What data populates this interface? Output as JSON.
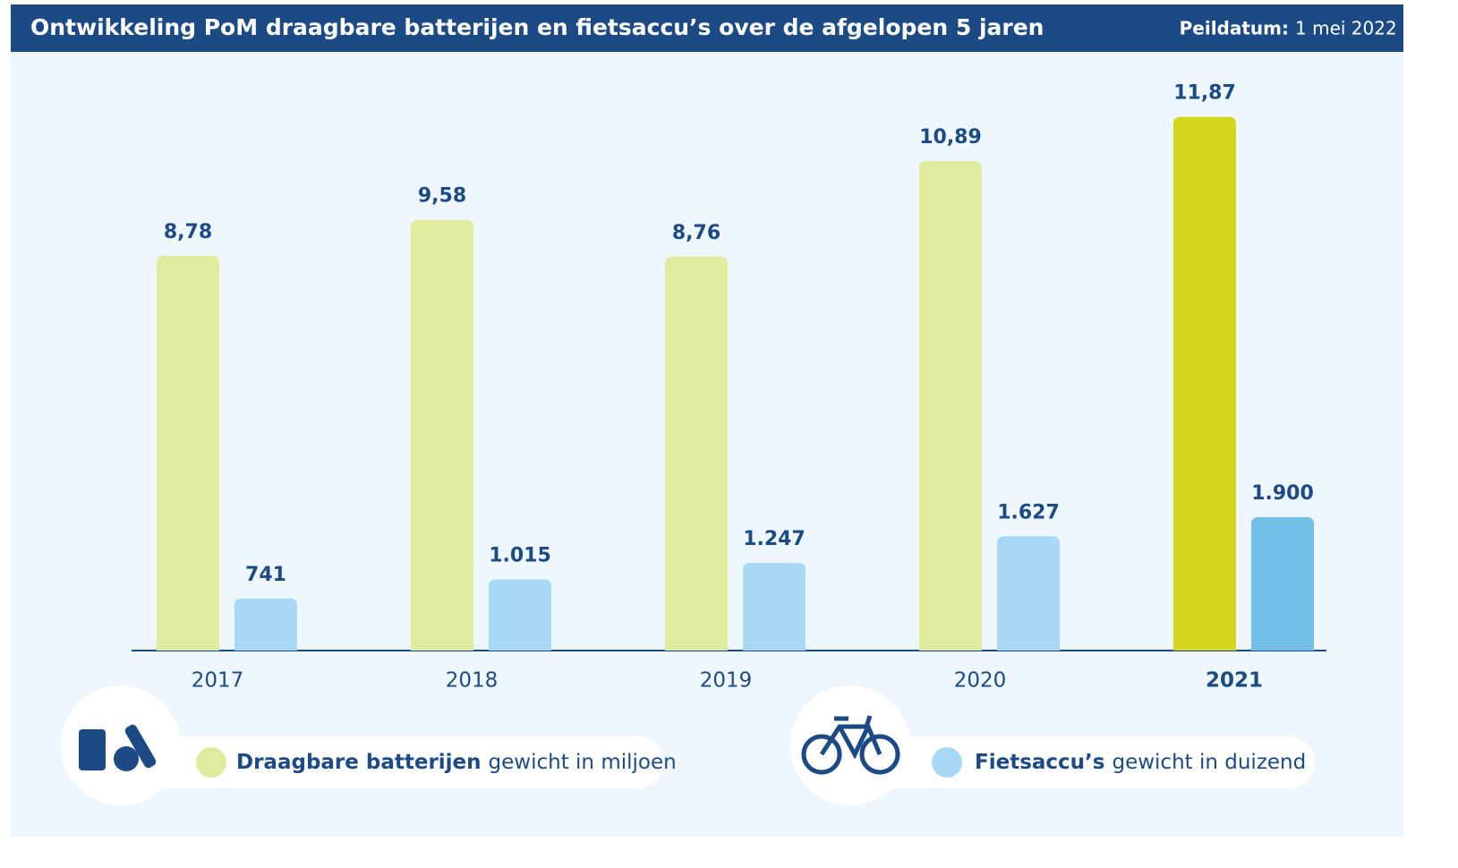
{
  "chart_data": {
    "type": "bar",
    "title": "Ontwikkeling PoM draagbare batterijen en fietsaccu’s over de afgelopen 5 jaren",
    "date_label": "Peildatum:",
    "date": "1 mei 2022",
    "categories": [
      "2017",
      "2018",
      "2019",
      "2020",
      "2021"
    ],
    "ylim": [
      0,
      12.5
    ],
    "y2lim": [
      0,
      8000
    ],
    "series": [
      {
        "name": "Draagbare batterijen",
        "unit_label": "gewicht in miljoen",
        "color": "#dfeca0",
        "colors": [
          "#dfeca0",
          "#dfeca0",
          "#dfeca0",
          "#dfeca0",
          "#d4d61e"
        ],
        "values": [
          8.78,
          9.58,
          8.76,
          10.89,
          11.87
        ],
        "value_labels": [
          "8,78",
          "9,58",
          "8,76",
          "10,89",
          "11,87"
        ]
      },
      {
        "name": "Fietsaccu’s",
        "unit_label": "gewicht in duizend",
        "color": "#a9d8f5",
        "axis": "y2",
        "colors": [
          "#a9d8f5",
          "#a9d8f5",
          "#a9d8f5",
          "#a9d8f5",
          "#74bfe7"
        ],
        "values": [
          741,
          1015,
          1247,
          1627,
          1900
        ],
        "value_labels": [
          "741",
          "1.015",
          "1.247",
          "1.627",
          "1.900"
        ]
      }
    ]
  }
}
